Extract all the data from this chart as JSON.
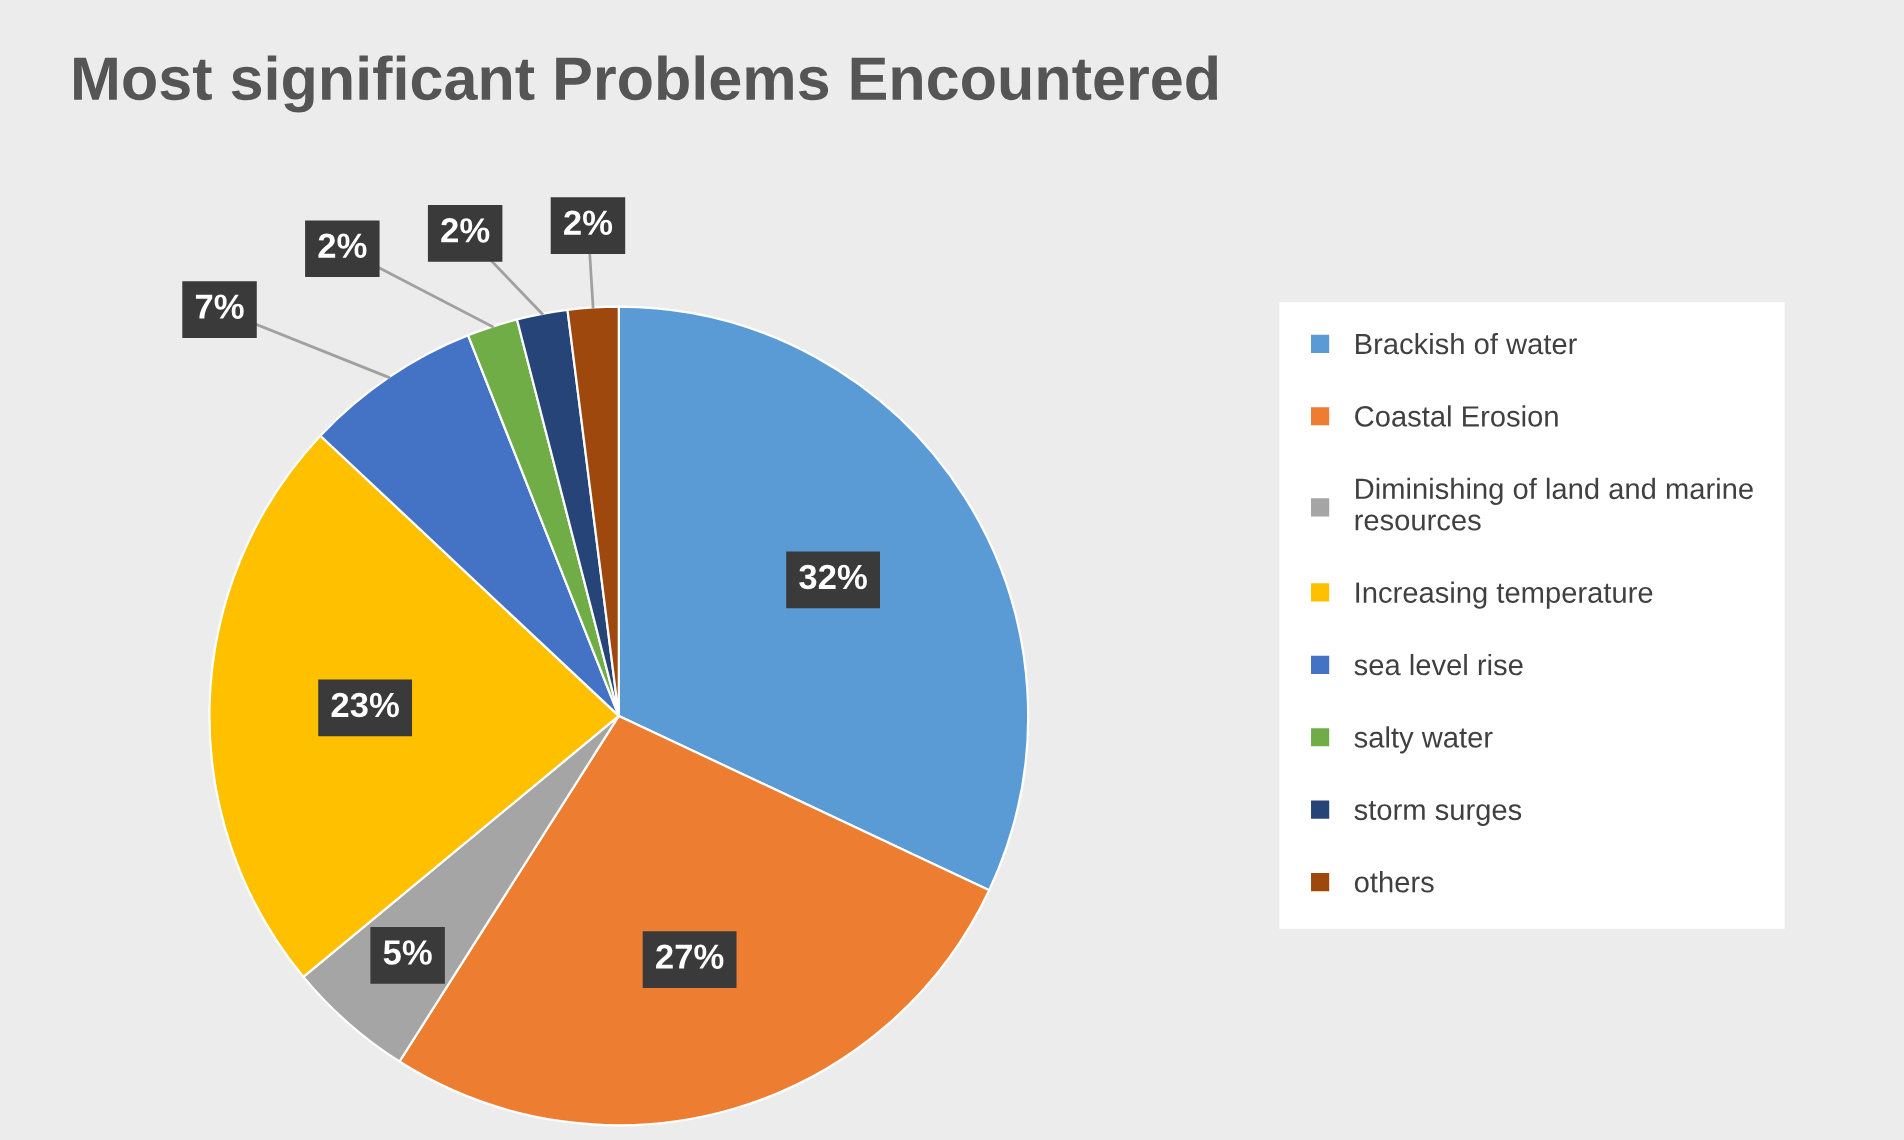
{
  "chart_data": {
    "type": "pie",
    "title": "Most significant Problems Encountered",
    "categories": [
      "Brackish of water",
      "Coastal Erosion",
      "Diminishing of land and marine resources",
      "Increasing temperature",
      "sea level rise",
      "salty water",
      "storm surges",
      "others"
    ],
    "values": [
      32,
      27,
      5,
      23,
      7,
      2,
      2,
      2
    ],
    "colors": [
      "#5b9bd5",
      "#ed7d31",
      "#a5a5a5",
      "#ffc000",
      "#4472c4",
      "#70ad47",
      "#264478",
      "#9e480e"
    ],
    "value_labels": [
      "32%",
      "27%",
      "5%",
      "23%",
      "7%",
      "2%",
      "2%",
      "2%"
    ],
    "legend": "right"
  }
}
